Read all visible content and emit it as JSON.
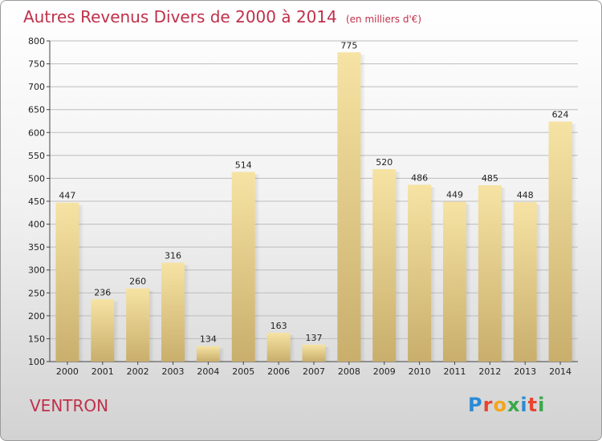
{
  "header": {
    "title": "Autres Revenus Divers de 2000 à 2014",
    "unit": "(en milliers d'€)"
  },
  "footer": {
    "location": "VENTRON",
    "logo_letters": [
      "P",
      "r",
      "o",
      "x",
      "i",
      "t",
      "i"
    ],
    "logo_colors": [
      "#2a8bd6",
      "#e8442e",
      "#f3a51b",
      "#3aa84a",
      "#2a8bd6",
      "#e8442e",
      "#3aa84a"
    ]
  },
  "chart_data": {
    "type": "bar",
    "title": "Autres Revenus Divers de 2000 à 2014",
    "categories": [
      "2000",
      "2001",
      "2002",
      "2003",
      "2004",
      "2005",
      "2006",
      "2007",
      "2008",
      "2009",
      "2010",
      "2011",
      "2012",
      "2013",
      "2014"
    ],
    "values": [
      447,
      236,
      260,
      316,
      134,
      514,
      163,
      137,
      775,
      520,
      486,
      449,
      485,
      448,
      624
    ],
    "ylim": [
      100,
      800
    ],
    "yticks": [
      100,
      150,
      200,
      250,
      300,
      350,
      400,
      450,
      500,
      550,
      600,
      650,
      700,
      750,
      800
    ],
    "grid": true,
    "bar_color_top": "#f6e3a3",
    "bar_color_bottom": "#c9ae6c"
  }
}
